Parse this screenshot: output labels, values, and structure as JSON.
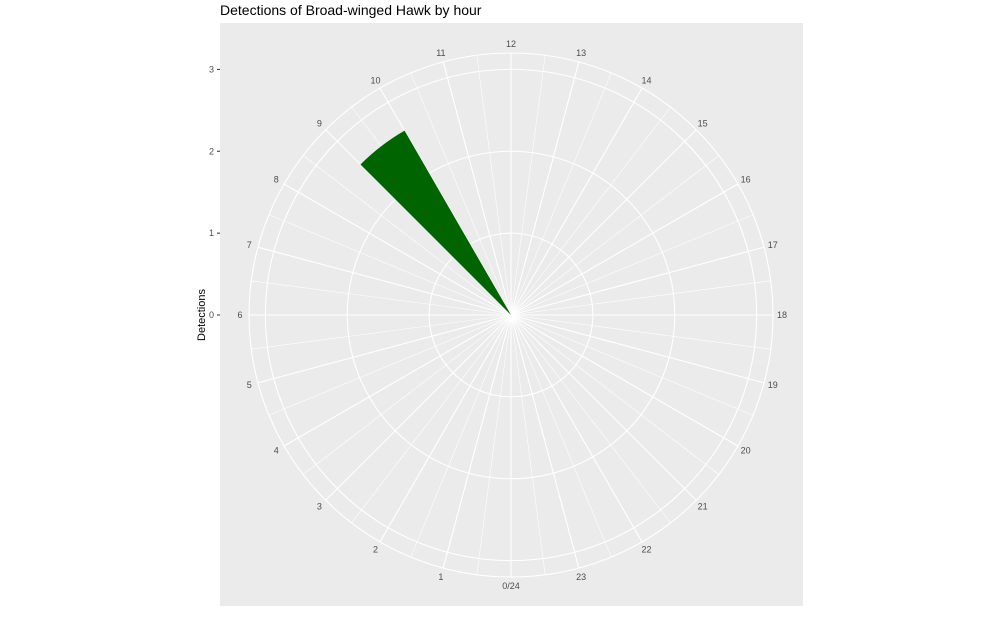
{
  "chart_data": {
    "type": "polar-bar",
    "title": "Detections of Broad-winged Hawk by hour",
    "ylabel": "Detections",
    "y_ticks": [
      0,
      1,
      2,
      3
    ],
    "ylim": [
      0,
      3.2
    ],
    "hour_labels": [
      "0/24",
      "1",
      "2",
      "3",
      "4",
      "5",
      "6",
      "7",
      "8",
      "9",
      "10",
      "11",
      "12",
      "13",
      "14",
      "15",
      "16",
      "17",
      "18",
      "19",
      "20",
      "21",
      "22",
      "23"
    ],
    "bars": [
      {
        "hour": 9,
        "width": 1,
        "value": 2.6
      }
    ],
    "colors": {
      "panel": "#ebebeb",
      "grid": "#ffffff",
      "bar": "#006400"
    }
  }
}
